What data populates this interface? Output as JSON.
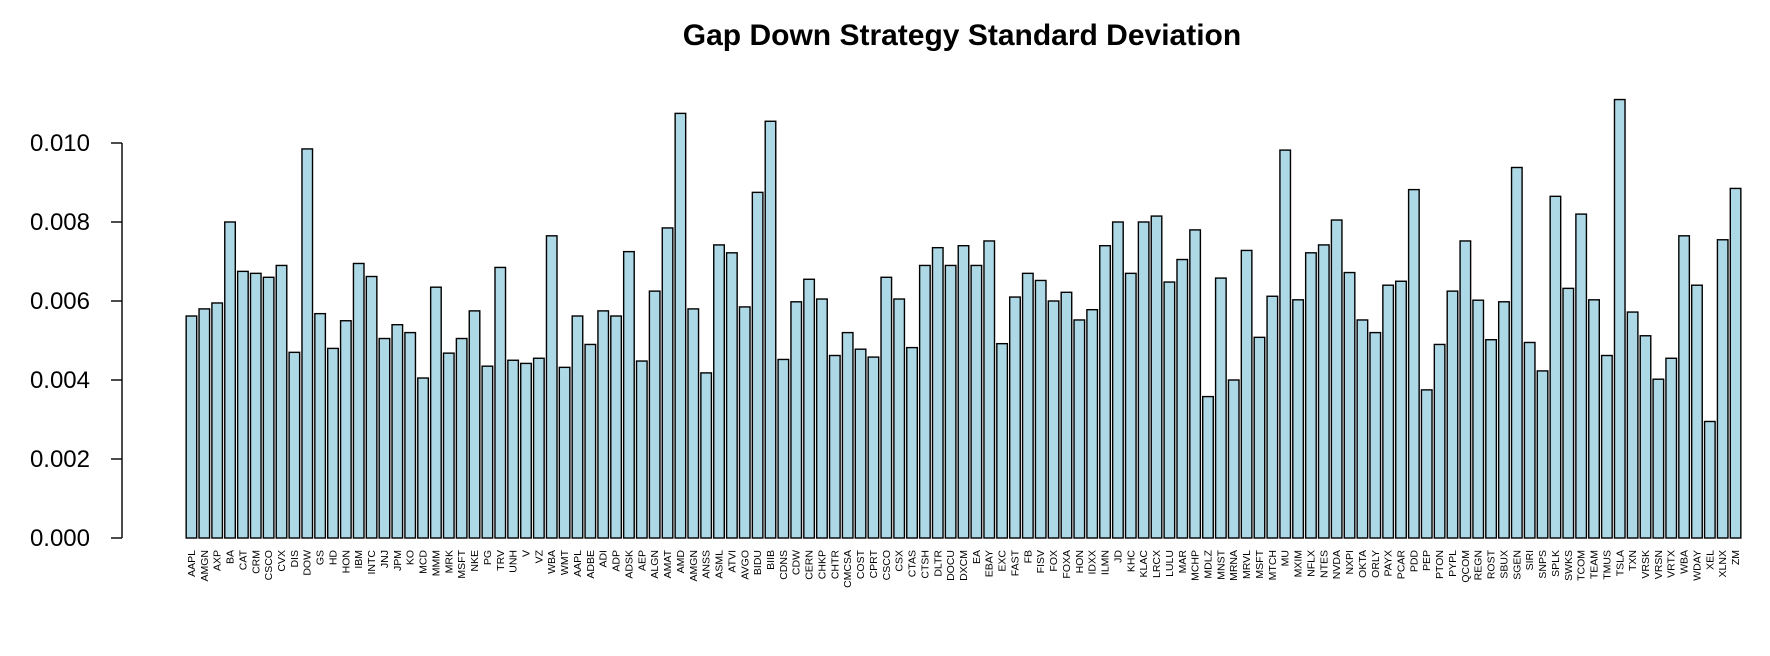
{
  "chart_data": {
    "type": "bar",
    "title": "Gap Down Strategy Standard Deviation",
    "xlabel": "",
    "ylabel": "",
    "ylim": [
      0,
      0.0115
    ],
    "yticks": [
      "0.000",
      "0.002",
      "0.004",
      "0.006",
      "0.008",
      "0.010"
    ],
    "ytick_values": [
      0,
      0.002,
      0.004,
      0.006,
      0.008,
      0.01
    ],
    "bar_color": "#add8e6",
    "categories": [
      "AAPL",
      "AMGN",
      "AXP",
      "BA",
      "CAT",
      "CRM",
      "CSCO",
      "CVX",
      "DIS",
      "DOW",
      "GS",
      "HD",
      "HON",
      "IBM",
      "INTC",
      "JNJ",
      "JPM",
      "KO",
      "MCD",
      "MMM",
      "MRK",
      "MSFT",
      "NKE",
      "PG",
      "TRV",
      "UNH",
      "V",
      "VZ",
      "WBA",
      "WMT",
      "AAPL",
      "ADBE",
      "ADI",
      "ADP",
      "ADSK",
      "AEP",
      "ALGN",
      "AMAT",
      "AMD",
      "AMGN",
      "ANSS",
      "ASML",
      "ATVI",
      "AVGO",
      "BIDU",
      "BIIB",
      "CDNS",
      "CDW",
      "CERN",
      "CHKP",
      "CHTR",
      "CMCSA",
      "COST",
      "CPRT",
      "CSCO",
      "CSX",
      "CTAS",
      "CTSH",
      "DLTR",
      "DOCU",
      "DXCM",
      "EA",
      "EBAY",
      "EXC",
      "FAST",
      "FB",
      "FISV",
      "FOX",
      "FOXA",
      "HON",
      "IDXX",
      "ILMN",
      "JD",
      "KHC",
      "KLAC",
      "LRCX",
      "LULU",
      "MAR",
      "MCHP",
      "MDLZ",
      "MNST",
      "MRNA",
      "MRVL",
      "MSFT",
      "MTCH",
      "MU",
      "MXIM",
      "NFLX",
      "NTES",
      "NVDA",
      "NXPI",
      "OKTA",
      "ORLY",
      "PAYX",
      "PCAR",
      "PDD",
      "PEP",
      "PTON",
      "PYPL",
      "QCOM",
      "REGN",
      "ROST",
      "SBUX",
      "SGEN",
      "SIRI",
      "SNPS",
      "SPLK",
      "SWKS",
      "TCOM",
      "TEAM",
      "TMUS",
      "TSLA",
      "TXN",
      "VRSK",
      "VRSN",
      "VRTX",
      "WBA",
      "WDAY",
      "XEL",
      "XLNX",
      "ZM"
    ],
    "values": [
      0.00562,
      0.0058,
      0.00595,
      0.008,
      0.00675,
      0.0067,
      0.0066,
      0.0069,
      0.0047,
      0.00985,
      0.00568,
      0.0048,
      0.0055,
      0.00695,
      0.00662,
      0.00505,
      0.0054,
      0.0052,
      0.00405,
      0.00635,
      0.00468,
      0.00505,
      0.00575,
      0.00435,
      0.00685,
      0.0045,
      0.00442,
      0.00455,
      0.00765,
      0.00432,
      0.00562,
      0.0049,
      0.00575,
      0.00562,
      0.00725,
      0.00448,
      0.00625,
      0.00785,
      0.01075,
      0.0058,
      0.00418,
      0.00742,
      0.00722,
      0.00585,
      0.00875,
      0.01055,
      0.00452,
      0.00598,
      0.00655,
      0.00605,
      0.00462,
      0.0052,
      0.00478,
      0.00458,
      0.0066,
      0.00605,
      0.00482,
      0.0069,
      0.00735,
      0.0069,
      0.0074,
      0.0069,
      0.00752,
      0.00492,
      0.0061,
      0.0067,
      0.00652,
      0.006,
      0.00622,
      0.00552,
      0.00578,
      0.0074,
      0.008,
      0.0067,
      0.008,
      0.00815,
      0.00648,
      0.00705,
      0.0078,
      0.00358,
      0.00658,
      0.004,
      0.00728,
      0.00508,
      0.00612,
      0.00982,
      0.00603,
      0.00722,
      0.00742,
      0.00805,
      0.00672,
      0.00552,
      0.0052,
      0.0064,
      0.0065,
      0.00882,
      0.00375,
      0.0049,
      0.00625,
      0.00752,
      0.00602,
      0.00502,
      0.00598,
      0.00938,
      0.00495,
      0.00423,
      0.00865,
      0.00632,
      0.0082,
      0.00603,
      0.00462,
      0.0111,
      0.00572,
      0.00512,
      0.00402,
      0.00455,
      0.00765,
      0.0064,
      0.00295,
      0.00755,
      0.00885
    ]
  }
}
